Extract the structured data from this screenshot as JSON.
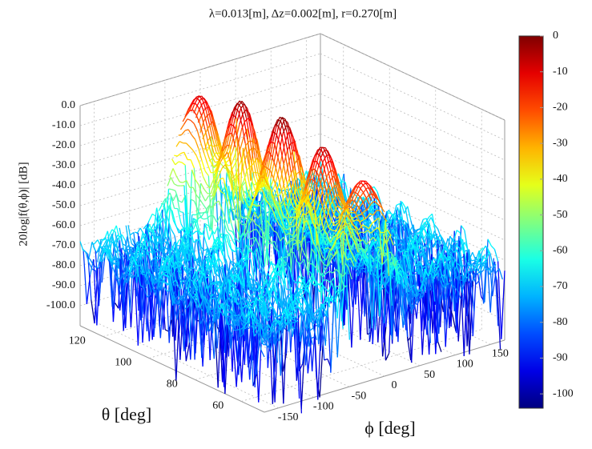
{
  "chart_data": {
    "type": "surface",
    "title": "λ=0.013[m],  Δz=0.002[m],  r=0.270[m]",
    "xlabel": "ϕ [deg]",
    "ylabel": "θ [deg]",
    "zlabel": "20log|f(θ,ϕ)| [dB]",
    "xlim": [
      -170,
      170
    ],
    "xticks": [
      -150,
      -100,
      -50,
      0,
      50,
      100,
      150
    ],
    "ylim": [
      50,
      130
    ],
    "yticks": [
      60,
      80,
      100,
      120
    ],
    "zlim": [
      -110,
      0
    ],
    "zticks": [
      {
        "value": 0,
        "label": "0.0"
      },
      {
        "value": -10,
        "label": "-10.0"
      },
      {
        "value": -20,
        "label": "-20.0"
      },
      {
        "value": -30,
        "label": "-30.0"
      },
      {
        "value": -40,
        "label": "-40.0"
      },
      {
        "value": -50,
        "label": "-50.0"
      },
      {
        "value": -60,
        "label": "-60.0"
      },
      {
        "value": -70,
        "label": "-70.0"
      },
      {
        "value": -80,
        "label": "-80.0"
      },
      {
        "value": -90,
        "label": "-90.0"
      },
      {
        "value": -100,
        "label": "-100.0"
      }
    ],
    "colorbar": {
      "clim": [
        -104,
        0
      ],
      "ticks": [
        0,
        -10,
        -20,
        -30,
        -40,
        -50,
        -60,
        -70,
        -80,
        -90,
        -100
      ],
      "colormap": "jet"
    },
    "grid": true
  }
}
